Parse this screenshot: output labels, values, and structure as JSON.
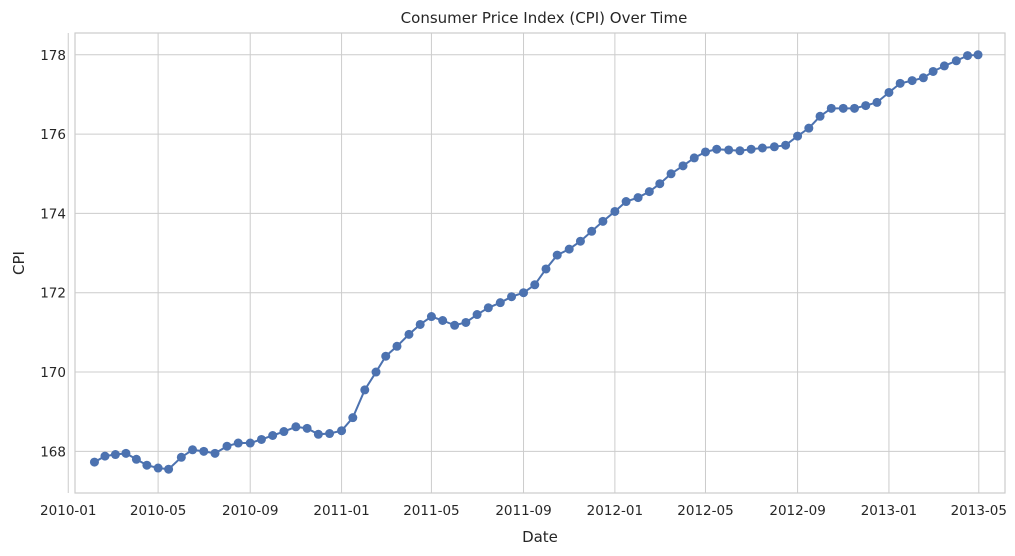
{
  "chart_data": {
    "type": "line",
    "title": "Consumer Price Index (CPI) Over Time",
    "xlabel": "Date",
    "ylabel": "CPI",
    "series_color": "#4c72b0",
    "grid": true,
    "marker": "circle",
    "xlim": [
      "2010-01-10",
      "2013-06-05"
    ],
    "ylim": [
      166.95,
      178.55
    ],
    "x_ticks": [
      "2010-01",
      "2010-05",
      "2010-09",
      "2011-01",
      "2011-05",
      "2011-09",
      "2012-01",
      "2012-05",
      "2012-09",
      "2013-01",
      "2013-05"
    ],
    "y_ticks": [
      168,
      170,
      172,
      174,
      176,
      178
    ],
    "series": [
      {
        "points": [
          [
            "2010-02-05",
            167.73
          ],
          [
            "2010-02-19",
            167.88
          ],
          [
            "2010-03-05",
            167.92
          ],
          [
            "2010-03-19",
            167.95
          ],
          [
            "2010-04-02",
            167.8
          ],
          [
            "2010-04-16",
            167.65
          ],
          [
            "2010-05-01",
            167.58
          ],
          [
            "2010-05-15",
            167.55
          ],
          [
            "2010-06-01",
            167.85
          ],
          [
            "2010-06-16",
            168.04
          ],
          [
            "2010-07-01",
            168.0
          ],
          [
            "2010-07-16",
            167.95
          ],
          [
            "2010-08-01",
            168.13
          ],
          [
            "2010-08-16",
            168.21
          ],
          [
            "2010-09-01",
            168.21
          ],
          [
            "2010-09-16",
            168.3
          ],
          [
            "2010-10-01",
            168.4
          ],
          [
            "2010-10-16",
            168.5
          ],
          [
            "2010-11-01",
            168.62
          ],
          [
            "2010-11-16",
            168.58
          ],
          [
            "2010-12-01",
            168.43
          ],
          [
            "2010-12-16",
            168.45
          ],
          [
            "2011-01-01",
            168.52
          ],
          [
            "2011-01-16",
            168.85
          ],
          [
            "2011-02-01",
            169.55
          ],
          [
            "2011-02-16",
            170.0
          ],
          [
            "2011-03-01",
            170.4
          ],
          [
            "2011-03-16",
            170.65
          ],
          [
            "2011-04-01",
            170.95
          ],
          [
            "2011-04-16",
            171.2
          ],
          [
            "2011-05-01",
            171.4
          ],
          [
            "2011-05-16",
            171.3
          ],
          [
            "2011-06-01",
            171.18
          ],
          [
            "2011-06-16",
            171.25
          ],
          [
            "2011-07-01",
            171.45
          ],
          [
            "2011-07-16",
            171.62
          ],
          [
            "2011-08-01",
            171.75
          ],
          [
            "2011-08-16",
            171.9
          ],
          [
            "2011-09-01",
            172.0
          ],
          [
            "2011-09-16",
            172.2
          ],
          [
            "2011-10-01",
            172.6
          ],
          [
            "2011-10-16",
            172.95
          ],
          [
            "2011-11-01",
            173.1
          ],
          [
            "2011-11-16",
            173.3
          ],
          [
            "2011-12-01",
            173.55
          ],
          [
            "2011-12-16",
            173.8
          ],
          [
            "2012-01-01",
            174.05
          ],
          [
            "2012-01-16",
            174.3
          ],
          [
            "2012-02-01",
            174.4
          ],
          [
            "2012-02-16",
            174.55
          ],
          [
            "2012-03-01",
            174.75
          ],
          [
            "2012-03-16",
            175.0
          ],
          [
            "2012-04-01",
            175.2
          ],
          [
            "2012-04-16",
            175.4
          ],
          [
            "2012-05-01",
            175.55
          ],
          [
            "2012-05-16",
            175.62
          ],
          [
            "2012-06-01",
            175.6
          ],
          [
            "2012-06-16",
            175.58
          ],
          [
            "2012-07-01",
            175.62
          ],
          [
            "2012-07-16",
            175.65
          ],
          [
            "2012-08-01",
            175.68
          ],
          [
            "2012-08-16",
            175.72
          ],
          [
            "2012-09-01",
            175.95
          ],
          [
            "2012-09-16",
            176.15
          ],
          [
            "2012-10-01",
            176.45
          ],
          [
            "2012-10-16",
            176.65
          ],
          [
            "2012-11-01",
            176.65
          ],
          [
            "2012-11-16",
            176.65
          ],
          [
            "2012-12-01",
            176.72
          ],
          [
            "2012-12-16",
            176.8
          ],
          [
            "2013-01-01",
            177.05
          ],
          [
            "2013-01-16",
            177.28
          ],
          [
            "2013-02-01",
            177.35
          ],
          [
            "2013-02-16",
            177.42
          ],
          [
            "2013-03-01",
            177.58
          ],
          [
            "2013-03-16",
            177.72
          ],
          [
            "2013-04-01",
            177.85
          ],
          [
            "2013-04-16",
            177.98
          ],
          [
            "2013-04-30",
            178.0
          ]
        ]
      }
    ]
  }
}
